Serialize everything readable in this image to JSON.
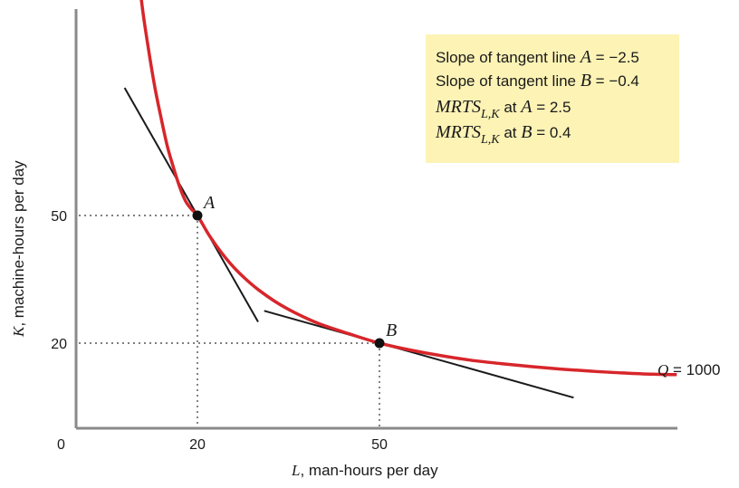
{
  "chart_data": {
    "type": "line",
    "title": "",
    "xlabel": {
      "var": "L",
      "rest": ", man-hours per day"
    },
    "ylabel": {
      "var": "K",
      "rest": ", machine-hours per day"
    },
    "origin_label": "0",
    "x_ticks": [
      {
        "value": 20,
        "label": "20"
      },
      {
        "value": 50,
        "label": "50"
      }
    ],
    "y_ticks": [
      {
        "value": 20,
        "label": "20"
      },
      {
        "value": 50,
        "label": "50"
      }
    ],
    "series": [
      {
        "name": "Q = 1000",
        "name_var": "Q",
        "name_rest": " = 1000",
        "color": "#d7262b",
        "x": [
          10,
          11,
          12,
          13,
          14,
          15,
          16,
          17,
          18,
          19,
          20,
          22,
          24,
          26,
          28,
          30,
          33,
          36,
          40,
          45,
          50,
          55,
          60,
          65,
          70,
          75,
          80,
          85,
          90,
          95,
          99
        ],
        "y": [
          110,
          98,
          88.5,
          80,
          73,
          66.5,
          61.5,
          57,
          53.5,
          51.5,
          50,
          45.2,
          41.2,
          37.8,
          35,
          32.6,
          29.6,
          27.2,
          24.6,
          22.2,
          20,
          18.4,
          17.1,
          16,
          15.2,
          14.5,
          13.9,
          13.4,
          13.0,
          12.7,
          12.6
        ]
      }
    ],
    "points": [
      {
        "label": "A",
        "x": 20,
        "y": 50
      },
      {
        "label": "B",
        "x": 50,
        "y": 20
      }
    ],
    "tangents": [
      {
        "point": "A",
        "slope": -2.5,
        "x1": 8,
        "x2": 30
      },
      {
        "point": "B",
        "slope": -0.4,
        "x1": 31,
        "x2": 82
      }
    ],
    "xlim": [
      0,
      100
    ],
    "ylim": [
      0,
      110
    ],
    "grid": false,
    "annotation_box": {
      "bg": "#fdf3b5",
      "lines": [
        {
          "pre": "Slope of tangent line ",
          "var": "A",
          "post": " = −2.5"
        },
        {
          "pre": "Slope of tangent line ",
          "var": "B",
          "post": " = −0.4"
        },
        {
          "mrts": "MRTS",
          "sub": "L,K",
          "mid": " at ",
          "var": "A",
          "post": " = 2.5"
        },
        {
          "mrts": "MRTS",
          "sub": "L,K",
          "mid": " at ",
          "var": "B",
          "post": " = 0.4"
        }
      ]
    }
  }
}
